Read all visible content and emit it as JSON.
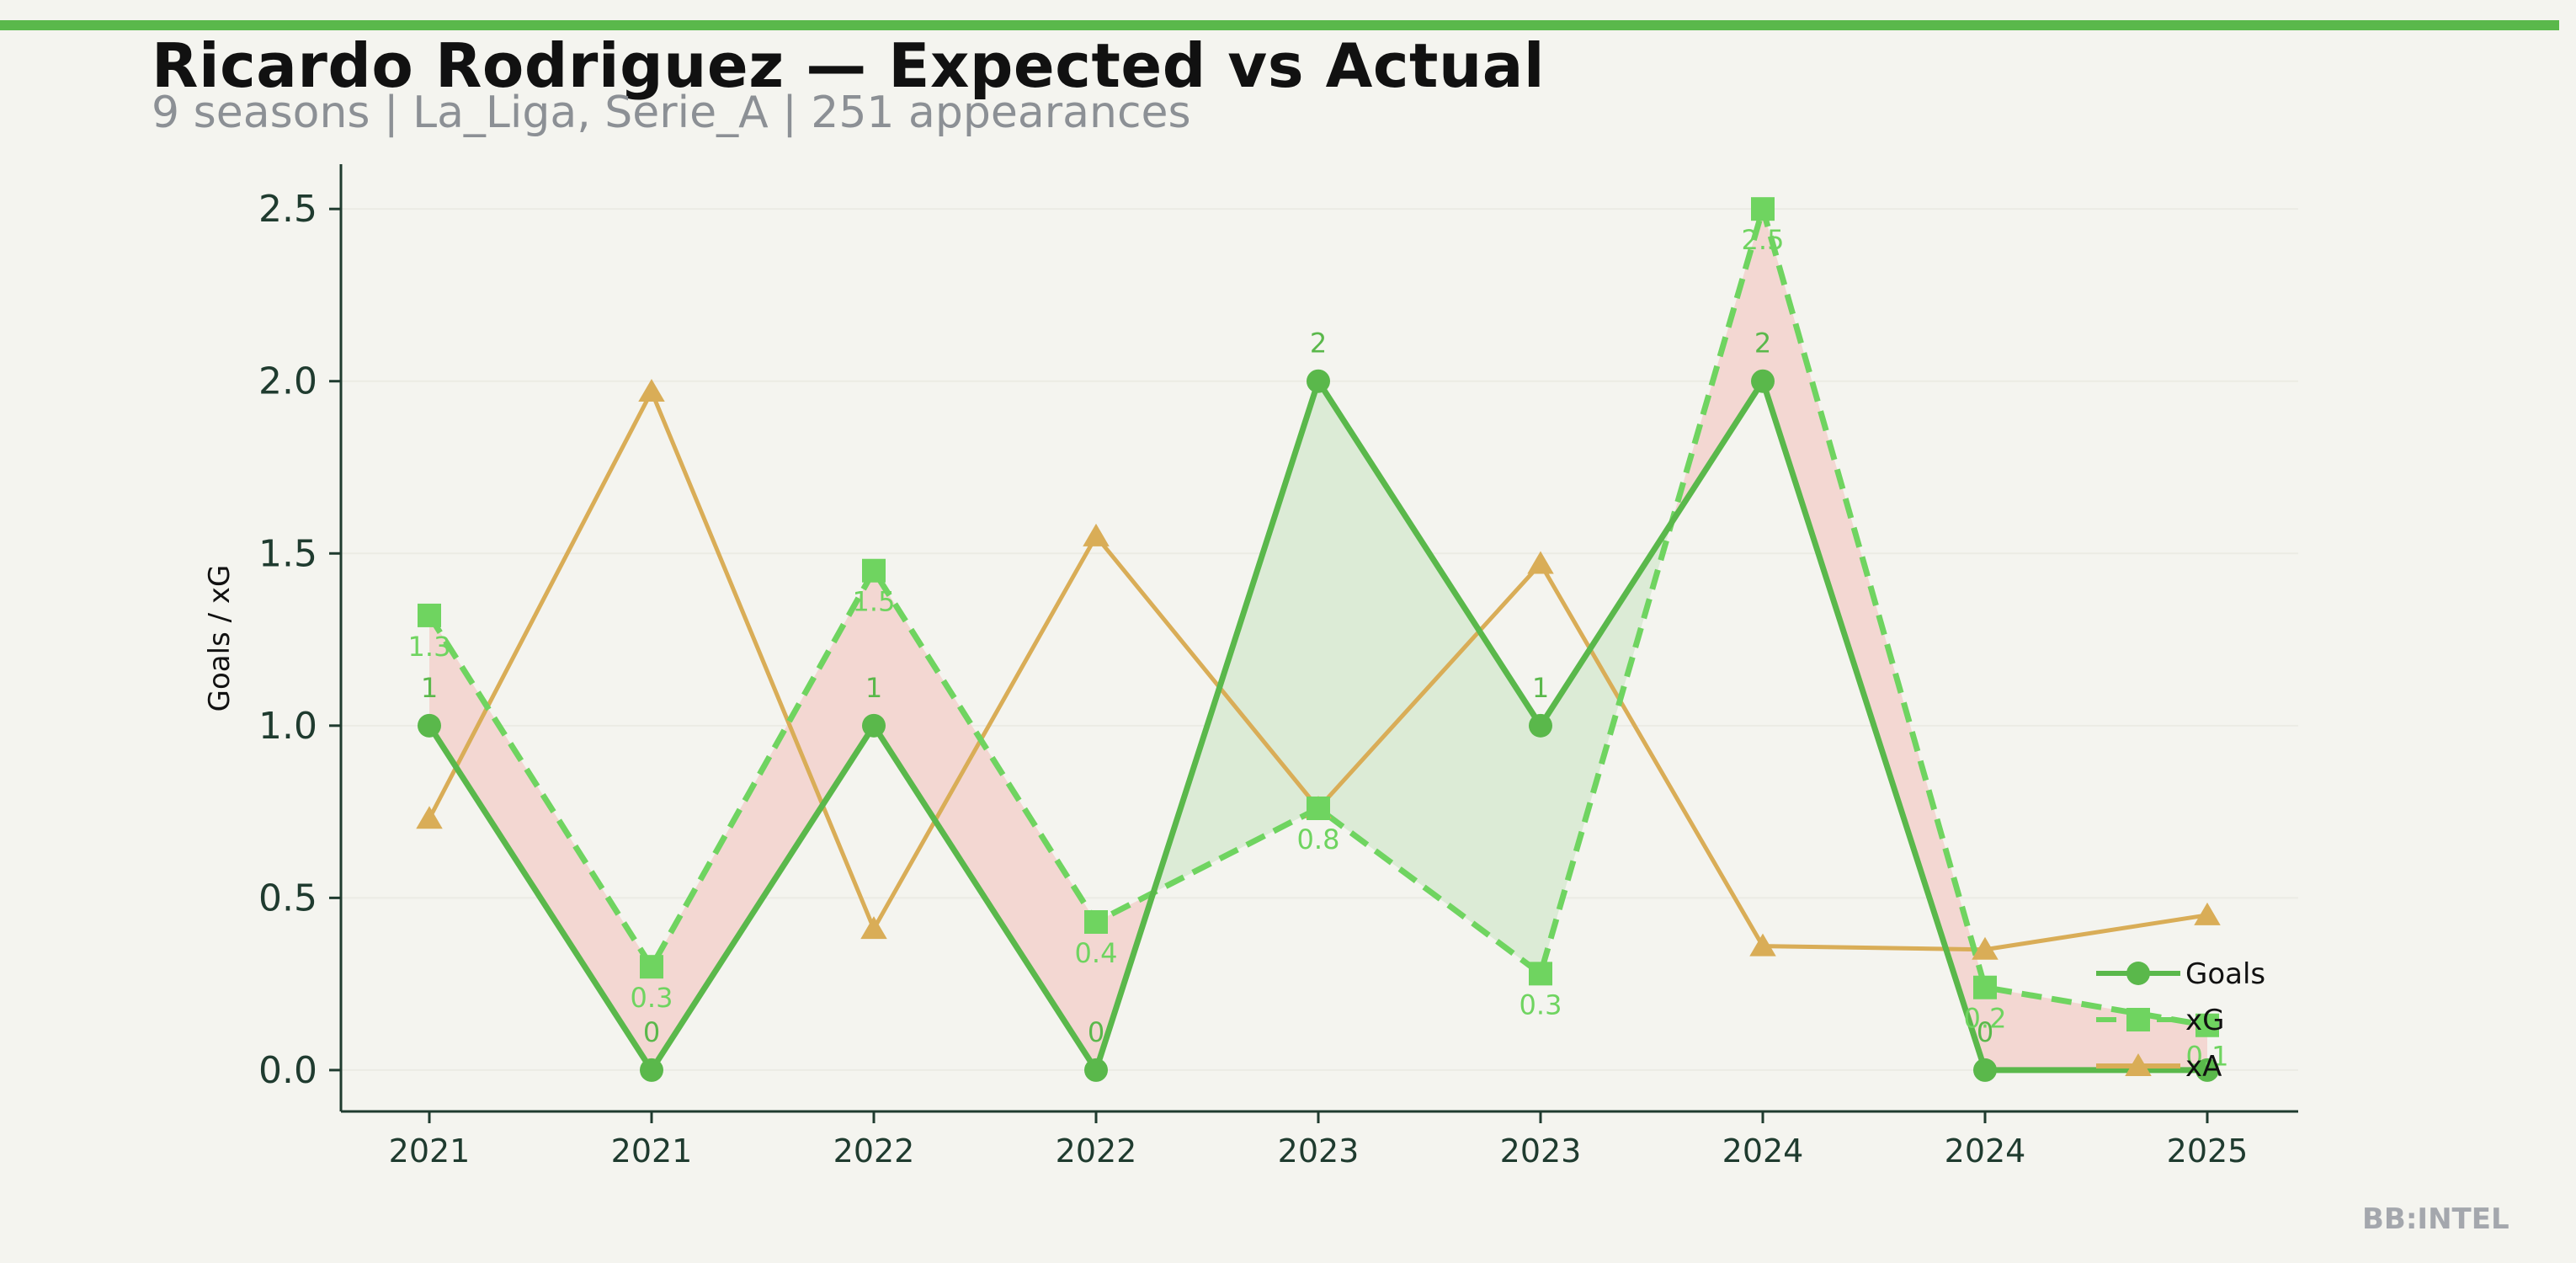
{
  "header": {
    "title": "Ricardo Rodriguez — Expected vs Actual",
    "subtitle": "9 seasons | La_Liga, Serie_A | 251 appearances"
  },
  "watermark": "BB:INTEL",
  "colors": {
    "goals": "#5ab84b",
    "xg": "#6fd460",
    "xa": "#d9ad57",
    "under_fill": "#f3d7d2",
    "over_fill": "#dcebd6",
    "axis": "#1f3b2f",
    "grid": "#ebebe4"
  },
  "chart_data": {
    "type": "line",
    "title": "Ricardo Rodriguez — Expected vs Actual",
    "xlabel": "",
    "ylabel": "Goals / xG",
    "categories": [
      "2021",
      "2021",
      "2022",
      "2022",
      "2023",
      "2023",
      "2024",
      "2024",
      "2025"
    ],
    "ylim": [
      -0.12,
      2.63
    ],
    "yticks": [
      "0.0",
      "0.5",
      "1.0",
      "1.5",
      "2.0",
      "2.5"
    ],
    "grid": "y-light",
    "legend": "bottom-right",
    "series": [
      {
        "name": "Goals",
        "marker": "circle",
        "values": [
          1,
          0,
          1,
          0,
          2,
          1,
          2,
          0,
          0
        ],
        "labels": [
          "1",
          "0",
          "1",
          "0",
          "2",
          "1",
          "2",
          "0",
          ""
        ]
      },
      {
        "name": "xG",
        "marker": "square",
        "style": "dashed",
        "values": [
          1.32,
          0.3,
          1.45,
          0.43,
          0.76,
          0.28,
          2.5,
          0.24,
          0.13
        ],
        "labels": [
          "1.3",
          "0.3",
          "1.5",
          "0.4",
          "0.8",
          "0.3",
          "2.5",
          "0.2",
          "0.1"
        ]
      },
      {
        "name": "xA",
        "marker": "triangle",
        "values": [
          0.73,
          1.97,
          0.41,
          1.55,
          0.76,
          1.47,
          0.36,
          0.35,
          0.45
        ]
      }
    ]
  }
}
